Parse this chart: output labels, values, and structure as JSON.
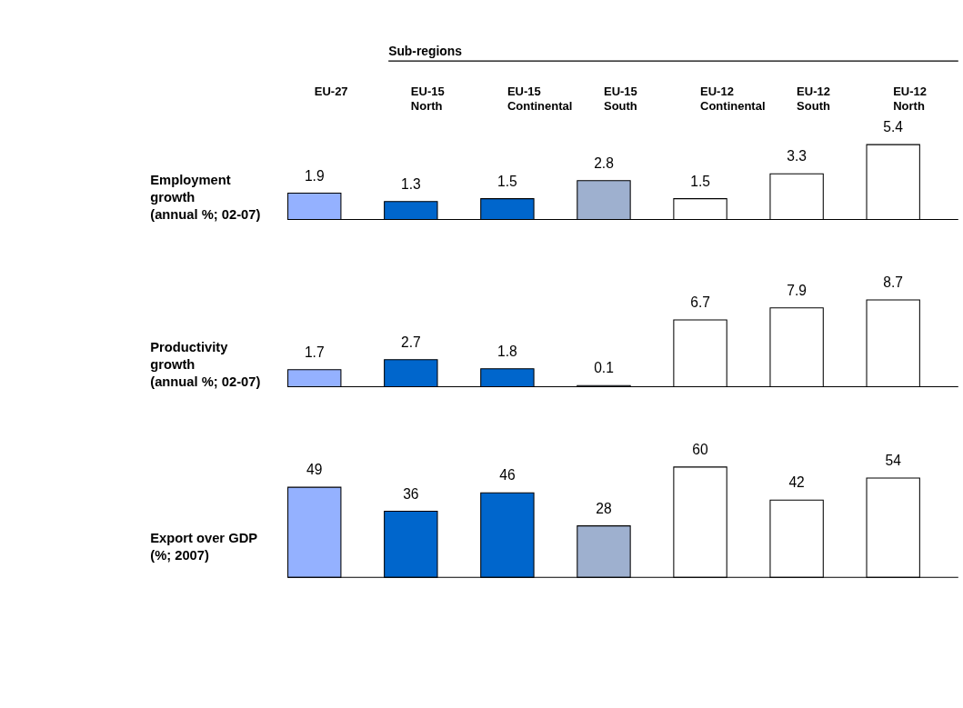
{
  "chart_data": [
    {
      "type": "bar",
      "categories": [
        "EU-27",
        "EU-15 North",
        "EU-15 Continental",
        "EU-15 South",
        "EU-12 Continental",
        "EU-12 South",
        "EU-12 North"
      ],
      "values": [
        1.9,
        1.3,
        1.5,
        2.8,
        1.5,
        3.3,
        5.4
      ],
      "colors": [
        "#94b1ff",
        "#0066cc",
        "#0066cc",
        "#9eb0cf",
        "#ffffff",
        "#ffffff",
        "#ffffff"
      ],
      "ylabel": "Employment growth (annual %; 02-07)",
      "data_labels": true,
      "tick_labels": "x",
      "annotations": [
        "Sub-regions"
      ]
    },
    {
      "type": "bar",
      "categories": [
        null,
        null,
        null,
        null,
        null,
        null,
        null
      ],
      "values": [
        1.7,
        2.7,
        1.8,
        0.1,
        6.7,
        7.9,
        8.7
      ],
      "colors": [
        "#94b1ff",
        "#0066cc",
        "#0066cc",
        "#9eb0cf",
        "#ffffff",
        "#ffffff",
        "#ffffff"
      ],
      "ylabel": "Productivity growth (annual %; 02-07)",
      "data_labels": true
    },
    {
      "type": "bar",
      "categories": [
        null,
        null,
        null,
        null,
        null,
        null,
        null
      ],
      "values": [
        49,
        36,
        46,
        28,
        60,
        42,
        54
      ],
      "colors": [
        "#94b1ff",
        "#0066cc",
        "#0066cc",
        "#9eb0cf",
        "#ffffff",
        "#ffffff",
        "#ffffff"
      ],
      "ylabel": "Export over GDP (%; 2007)",
      "data_labels": true
    }
  ]
}
